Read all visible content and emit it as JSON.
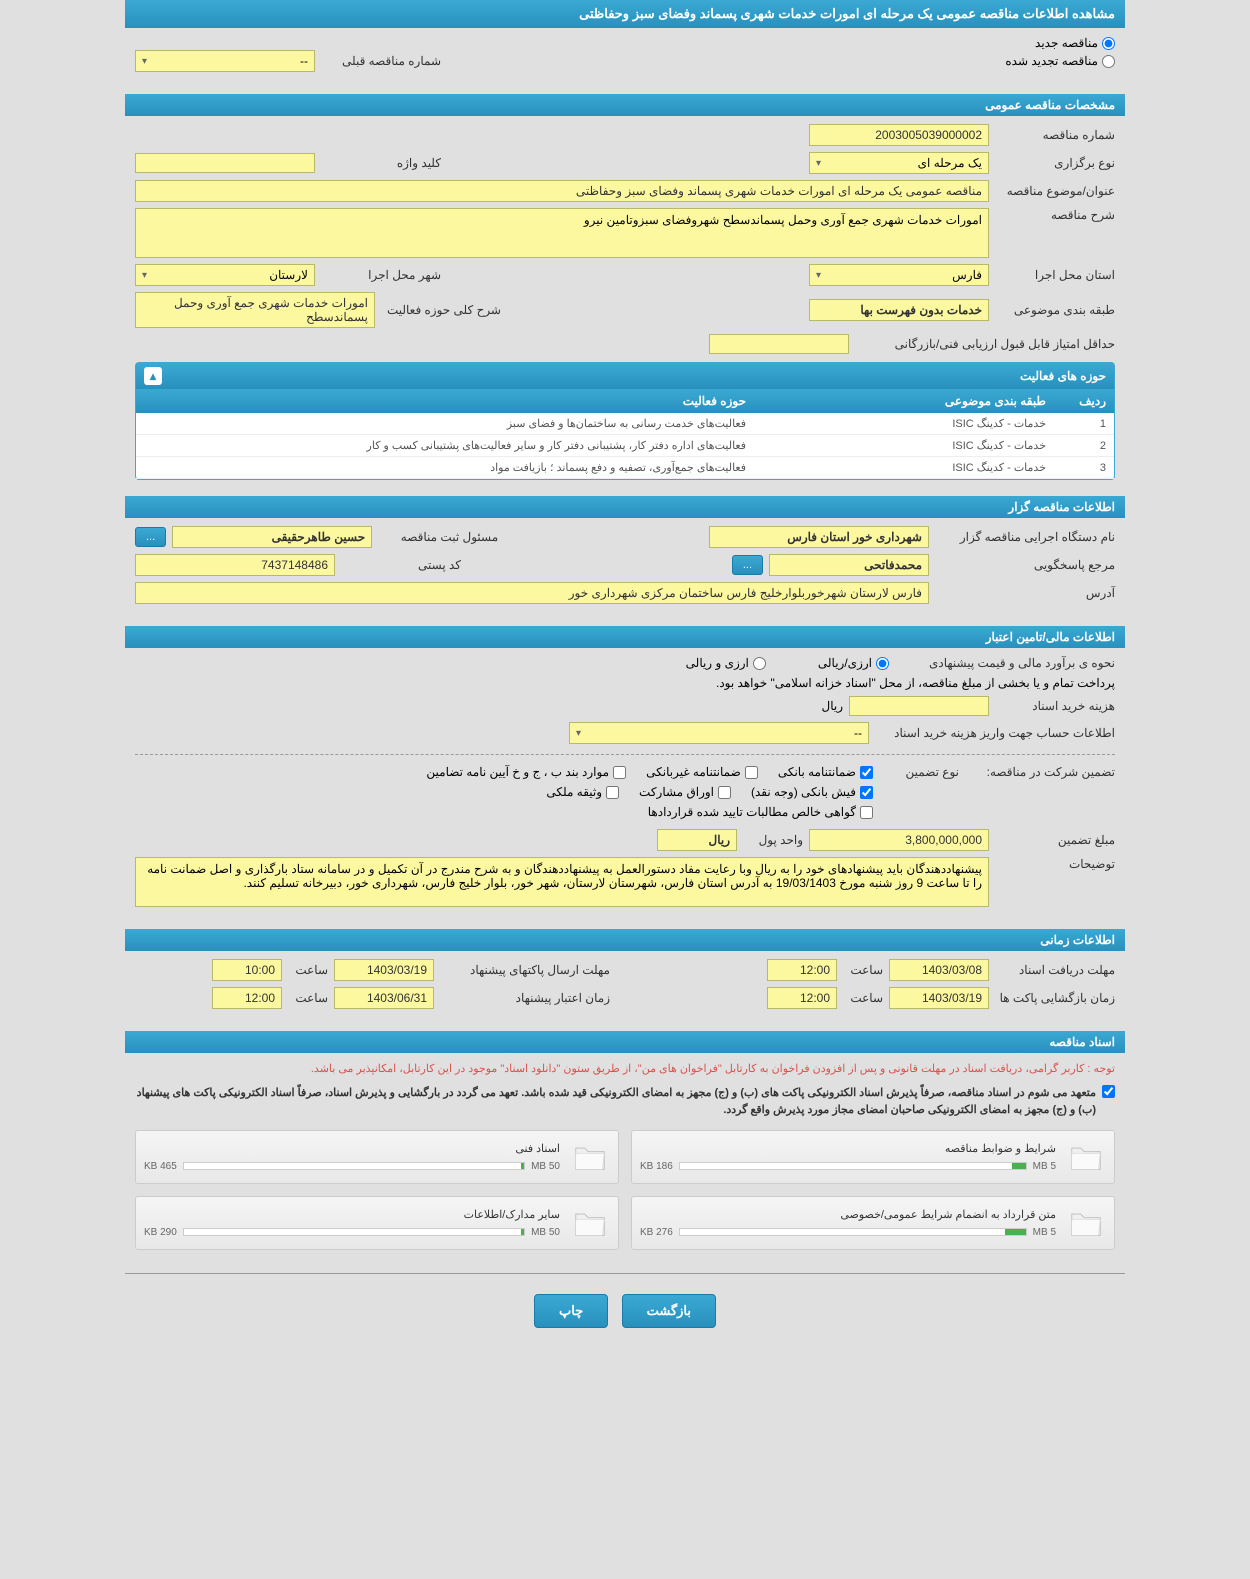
{
  "header": {
    "title": "مشاهده اطلاعات مناقصه عمومی یک مرحله ای امورات خدمات شهری پسماند وفضای سبز وحفاظتی"
  },
  "tender_type": {
    "new_label": "مناقصه جدید",
    "renewed_label": "مناقصه تجدید شده",
    "prev_number_label": "شماره مناقصه قبلی",
    "prev_number_value": "--"
  },
  "general_section": {
    "header": "مشخصات مناقصه عمومی",
    "number_label": "شماره مناقصه",
    "number_value": "2003005039000002",
    "type_label": "نوع برگزاری",
    "type_value": "یک مرحله ای",
    "keyword_label": "کلید واژه",
    "keyword_value": "",
    "title_label": "عنوان/موضوع مناقصه",
    "title_value": "مناقصه عمومی یک مرحله ای امورات خدمات شهری پسماند وفضای سبز وحفاظتی",
    "desc_label": "شرح مناقصه",
    "desc_value": "امورات خدمات شهری جمع آوری وحمل پسماندسطح شهروفضای سبزوتامین نیرو",
    "province_label": "استان محل اجرا",
    "province_value": "فارس",
    "city_label": "شهر محل اجرا",
    "city_value": "لارستان",
    "category_label": "طبقه بندی موضوعی",
    "category_value": "خدمات بدون فهرست بها",
    "activity_desc_label": "شرح کلی حوزه فعالیت",
    "activity_desc_value": "امورات خدمات شهری جمع آوری وحمل پسماندسطح",
    "min_score_label": "حداقل امتیاز قابل قبول ارزیابی فنی/بازرگانی",
    "min_score_value": ""
  },
  "activity_table": {
    "header": "حوزه های فعالیت",
    "columns": [
      "ردیف",
      "طبقه بندی موضوعی",
      "حوزه فعالیت"
    ],
    "rows": [
      [
        "1",
        "خدمات - کدینگ ISIC",
        "فعالیت‌های خدمت رسانی به ساختمان‌ها و فضای سبز"
      ],
      [
        "2",
        "خدمات - کدینگ ISIC",
        "فعالیت‌های اداره دفتر کار، پشتیبانی دفتر کار و سایر فعالیت‌های پشتیبانی کسب و کار"
      ],
      [
        "3",
        "خدمات - کدینگ ISIC",
        "فعالیت‌های جمع‌آوری، تصفیه و دفع پسماند ؛ بازیافت مواد"
      ]
    ]
  },
  "organizer_section": {
    "header": "اطلاعات مناقصه گزار",
    "org_label": "نام دستگاه اجرایی مناقصه گزار",
    "org_value": "شهرداری خور استان فارس",
    "registrar_label": "مسئول ثبت مناقصه",
    "registrar_value": "حسین  طاهرحقیقی",
    "contact_label": "مرجع پاسخگویی",
    "contact_value": "محمدفاتحی",
    "postal_label": "کد پستی",
    "postal_value": "7437148486",
    "address_label": "آدرس",
    "address_value": "فارس لارستان شهرخوربلوارخلیج فارس ساختمان مرکزی شهرداری خور",
    "more_btn": "..."
  },
  "financial_section": {
    "header": "اطلاعات مالی/تامین اعتبار",
    "price_method_label": "نحوه ی برآورد مالی و قیمت پیشنهادی",
    "currency_rial": "ارزی/ریالی",
    "currency_both": "ارزی و ریالی",
    "treasury_note": "پرداخت تمام و یا بخشی از مبلغ مناقصه، از محل \"اسناد خزانه اسلامی\" خواهد بود.",
    "doc_cost_label": "هزینه خرید اسناد",
    "doc_cost_value": "",
    "currency_unit": "ریال",
    "account_info_label": "اطلاعات حساب جهت واریز هزینه خرید اسناد",
    "account_info_value": "--",
    "guarantee_label": "تضمین شرکت در مناقصه:",
    "guarantee_type_label": "نوع تضمین",
    "check1": "ضمانتنامه بانکی",
    "check2": "ضمانتنامه غیربانکی",
    "check3": "موارد بند ب ، ج و خ آیین نامه تضامین",
    "check4": "فیش بانکی (وجه نقد)",
    "check5": "اوراق مشارکت",
    "check6": "وثیقه ملکی",
    "check7": "گواهی خالص مطالبات تایید شده قراردادها",
    "amount_label": "مبلغ تضمین",
    "amount_value": "3,800,000,000",
    "unit_label": "واحد پول",
    "unit_value": "ریال",
    "notes_label": "توضیحات",
    "notes_value": "پیشنهاددهندگان باید پیشنهادهای خود را به ریال وبا رعایت مفاد دستورالعمل به پیشنهاددهندگان و به شرح مندرج در آن تکمیل و در سامانه ستاد بارگذاری و اصل ضمانت نامه را تا ساعت 9 روز شنبه مورخ 19/03/1403 به آدرس استان فارس، شهرستان لارستان، شهر خور، بلوار خلیج فارس، شهرداری خور، دبیرخانه تسلیم کنند."
  },
  "time_section": {
    "header": "اطلاعات زمانی",
    "receive_deadline_label": "مهلت دریافت اسناد",
    "receive_deadline_date": "1403/03/08",
    "receive_deadline_time_label": "ساعت",
    "receive_deadline_time": "12:00",
    "submit_deadline_label": "مهلت ارسال پاکتهای پیشنهاد",
    "submit_deadline_date": "1403/03/19",
    "submit_deadline_time_label": "ساعت",
    "submit_deadline_time": "10:00",
    "opening_label": "زمان بازگشایی پاکت ها",
    "opening_date": "1403/03/19",
    "opening_time_label": "ساعت",
    "opening_time": "12:00",
    "validity_label": "زمان اعتبار پیشنهاد",
    "validity_date": "1403/06/31",
    "validity_time_label": "ساعت",
    "validity_time": "12:00"
  },
  "docs_section": {
    "header": "اسناد مناقصه",
    "notice1": "توجه : کاربر گرامی، دریافت اسناد در مهلت قانونی و پس از افزودن فراخوان به کارتابل \"فراخوان های من\"، از طریق ستون \"دانلود اسناد\" موجود در این کارتابل، امکانپذیر می باشد.",
    "notice2": "متعهد می شوم در اسناد مناقصه، صرفاً پذیرش اسناد الکترونیکی پاکت های (ب) و (ج) مجهز به امضای الکترونیکی قید شده باشد. تعهد می گردد در بارگشایی و پذیرش اسناد، صرفاً اسناد الکترونیکی پاکت های پیشنهاد (ب) و (ج) مجهز به امضای الکترونیکی صاحبان امضای مجاز مورد پذیرش واقع گردد.",
    "docs": [
      {
        "title": "شرایط و ضوابط مناقصه",
        "size": "186 KB",
        "max": "5 MB",
        "fill": 4
      },
      {
        "title": "اسناد فنی",
        "size": "465 KB",
        "max": "50 MB",
        "fill": 1
      },
      {
        "title": "متن قرارداد به انضمام شرایط عمومی/خصوصی",
        "size": "276 KB",
        "max": "5 MB",
        "fill": 6
      },
      {
        "title": "سایر مدارک/اطلاعات",
        "size": "290 KB",
        "max": "50 MB",
        "fill": 1
      }
    ]
  },
  "footer": {
    "back_btn": "بازگشت",
    "print_btn": "چاپ"
  },
  "colors": {
    "header_bg": "#2890bd",
    "field_bg": "#fcf8a0",
    "page_bg": "#e0e0e0"
  }
}
